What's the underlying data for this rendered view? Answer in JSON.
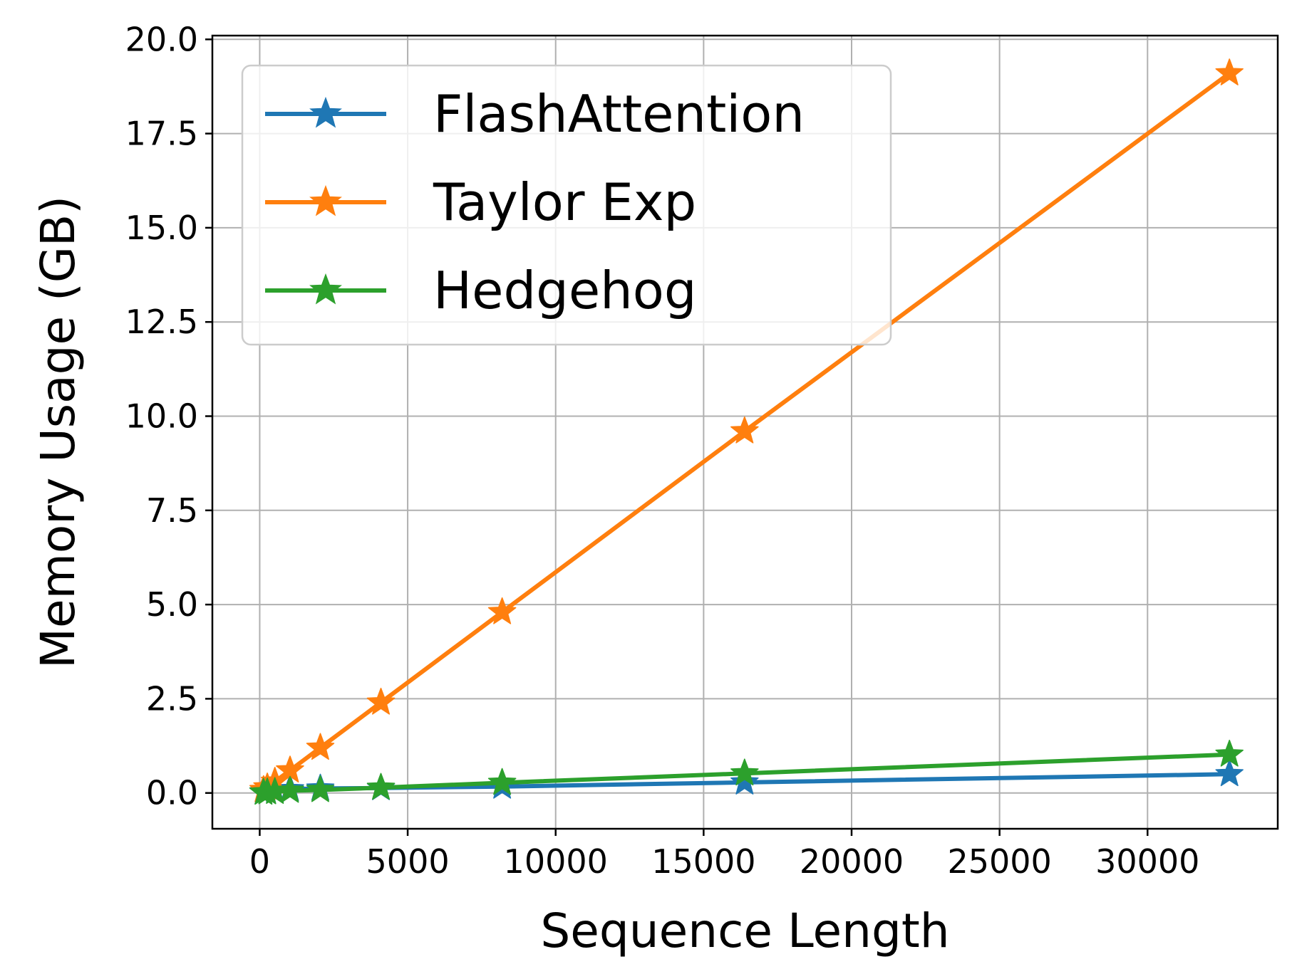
{
  "chart_data": {
    "type": "line",
    "title": "",
    "xlabel": "Sequence Length",
    "ylabel": "Memory Usage (GB)",
    "xlim": [
      -1600,
      34400
    ],
    "ylim": [
      -0.95,
      20.1
    ],
    "x_ticks": [
      0,
      5000,
      10000,
      15000,
      20000,
      25000,
      30000
    ],
    "y_ticks": [
      0.0,
      2.5,
      5.0,
      7.5,
      10.0,
      12.5,
      15.0,
      17.5,
      20.0
    ],
    "x_tick_labels": [
      "0",
      "5000",
      "10000",
      "15000",
      "20000",
      "25000",
      "30000"
    ],
    "y_tick_labels": [
      "0.0",
      "2.5",
      "5.0",
      "7.5",
      "10.0",
      "12.5",
      "15.0",
      "17.5",
      "20.0"
    ],
    "grid": true,
    "legend_position": "top-left",
    "x": [
      128,
      256,
      512,
      1024,
      2048,
      4096,
      8192,
      16384,
      32768
    ],
    "series": [
      {
        "name": "FlashAttention",
        "color": "#1f77b4",
        "marker": "star",
        "values": [
          0.02,
          0.03,
          0.06,
          0.1,
          0.12,
          0.13,
          0.17,
          0.28,
          0.5
        ]
      },
      {
        "name": "Taylor Exp",
        "color": "#ff7f0e",
        "marker": "star",
        "values": [
          0.08,
          0.15,
          0.3,
          0.6,
          1.2,
          2.4,
          4.8,
          9.6,
          19.1
        ]
      },
      {
        "name": "Hedgehog",
        "color": "#2ca02c",
        "marker": "star",
        "values": [
          0.01,
          0.02,
          0.03,
          0.06,
          0.08,
          0.14,
          0.27,
          0.52,
          1.02
        ]
      }
    ]
  }
}
